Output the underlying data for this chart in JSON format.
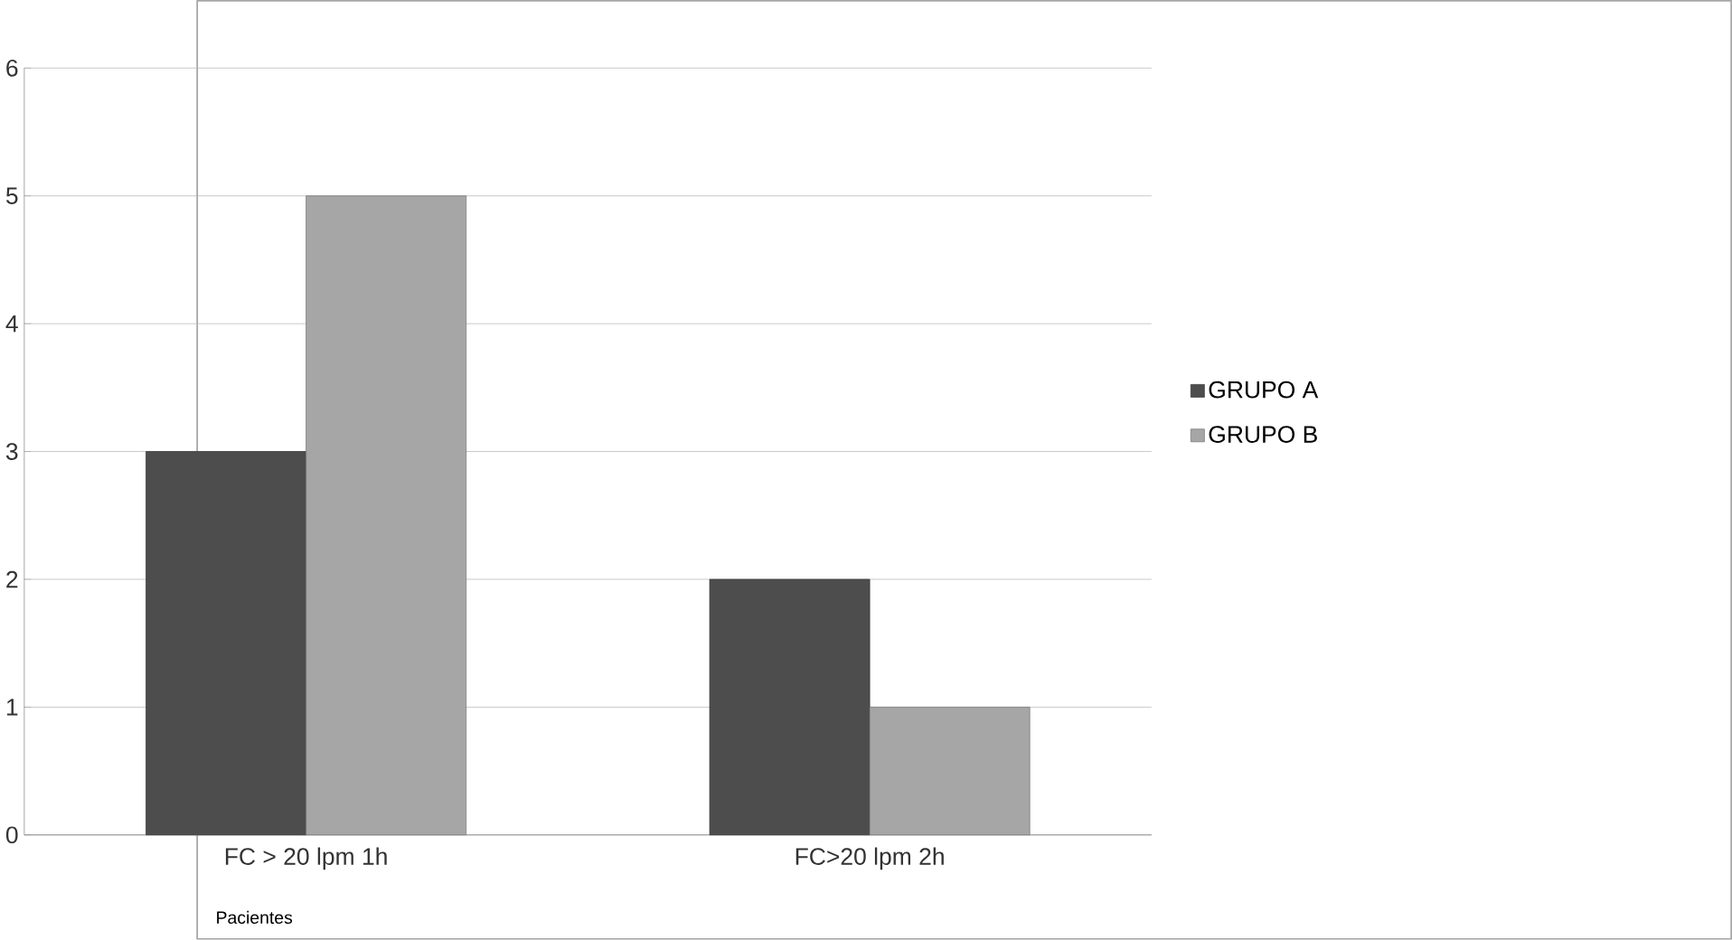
{
  "chart_data": {
    "type": "bar",
    "categories": [
      "FC > 20 lpm 1h",
      "FC>20 lpm 2h"
    ],
    "series": [
      {
        "name": "GRUPO A",
        "color": "#4d4d4d",
        "values": [
          3,
          2
        ]
      },
      {
        "name": "GRUPO B",
        "color": "#a6a6a6",
        "values": [
          5,
          1
        ]
      }
    ],
    "ylim": [
      0,
      6
    ],
    "yticks": [
      0,
      1,
      2,
      3,
      4,
      5,
      6
    ],
    "grid": "y",
    "legend": "right",
    "annotations": [
      "Pacientes"
    ]
  }
}
